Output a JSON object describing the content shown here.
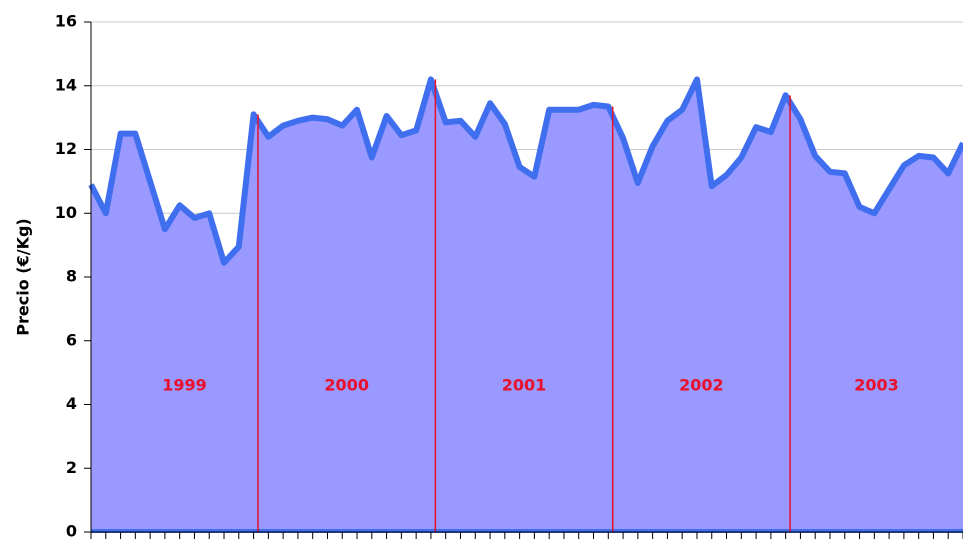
{
  "chart_data": {
    "type": "area",
    "y_label": "Precio (€/Kg)",
    "categories": [
      null,
      null,
      null,
      null,
      null,
      null,
      null,
      null,
      null,
      null,
      null,
      null,
      null,
      null,
      null,
      null,
      null,
      null,
      null,
      null,
      null,
      null,
      null,
      null,
      null,
      null,
      null,
      null,
      null,
      null,
      null,
      null,
      null,
      null,
      null,
      null,
      null,
      null,
      null,
      null,
      null,
      null,
      null,
      null,
      null,
      null,
      null,
      null,
      null,
      null,
      null,
      null,
      null,
      null,
      null,
      null,
      null,
      null,
      null,
      null
    ],
    "values": [
      10.9,
      10.0,
      12.5,
      12.5,
      11.0,
      9.5,
      10.25,
      9.85,
      10.0,
      8.45,
      8.95,
      13.1,
      12.4,
      12.75,
      12.9,
      13.0,
      12.95,
      12.75,
      13.25,
      11.75,
      13.05,
      12.45,
      12.6,
      14.2,
      12.85,
      12.9,
      12.4,
      13.45,
      12.8,
      11.45,
      11.15,
      13.25,
      13.25,
      13.25,
      13.4,
      13.35,
      12.35,
      10.95,
      12.1,
      12.9,
      13.25,
      14.2,
      10.85,
      11.2,
      11.75,
      12.7,
      12.55,
      13.7,
      12.95,
      11.8,
      11.3,
      11.25,
      10.2,
      10.0,
      10.75,
      11.5,
      11.8,
      11.75,
      11.25,
      12.2
    ],
    "line_color": "#3f6fef",
    "fill_color": "#9999ff",
    "annotations": [
      "1999",
      "2000",
      "2001",
      "2002",
      "2003"
    ],
    "annotation_color": "#e8102a",
    "ylim": [
      0,
      16
    ],
    "yticks": [
      0,
      2,
      4,
      6,
      8,
      10,
      12,
      14,
      16
    ],
    "grid": true
  }
}
